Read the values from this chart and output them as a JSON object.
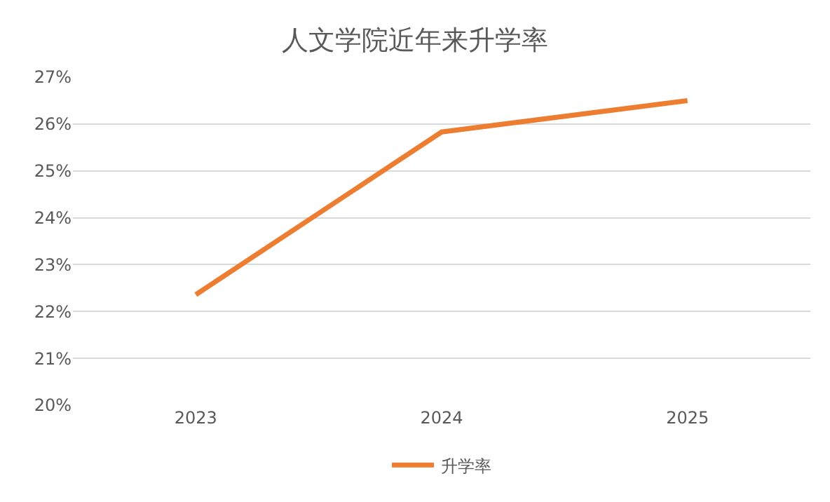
{
  "chart_data": {
    "type": "line",
    "title": "人文学院近年来升学率",
    "categories": [
      "2023",
      "2024",
      "2025"
    ],
    "series": [
      {
        "name": "升学率",
        "color": "#ed7d31",
        "values": [
          22.36,
          25.83,
          26.5
        ]
      }
    ],
    "ylim": [
      20,
      27
    ],
    "yticks": [
      {
        "value": 20,
        "label": "20%"
      },
      {
        "value": 21,
        "label": "21%"
      },
      {
        "value": 22,
        "label": "22%"
      },
      {
        "value": 23,
        "label": "23%"
      },
      {
        "value": 24,
        "label": "24%"
      },
      {
        "value": 25,
        "label": "25%"
      },
      {
        "value": 26,
        "label": "26%"
      },
      {
        "value": 27,
        "label": "27%"
      }
    ],
    "grid": "y",
    "legend": "bottom",
    "marker": "none",
    "line_style": "solid"
  }
}
